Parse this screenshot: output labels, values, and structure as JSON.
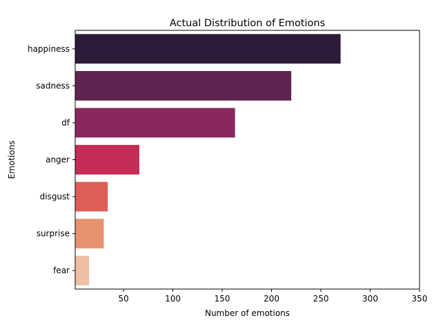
{
  "chart_data": {
    "type": "bar",
    "orientation": "horizontal",
    "title": "Actual Distribution of Emotions",
    "xlabel": "Number of emotions",
    "ylabel": "Emotions",
    "categories": [
      "happiness",
      "sadness",
      "df",
      "anger",
      "disgust",
      "surprise",
      "fear"
    ],
    "values": [
      270,
      220,
      163,
      66,
      34,
      30,
      15
    ],
    "colors": [
      "#2d1b39",
      "#5d2550",
      "#89285d",
      "#c22c55",
      "#dd5e57",
      "#e8936f",
      "#edbfa3"
    ],
    "xlim": [
      1,
      350
    ],
    "xticks": [
      50,
      100,
      150,
      200,
      250,
      300,
      350
    ],
    "grid": false,
    "legend": "none"
  }
}
